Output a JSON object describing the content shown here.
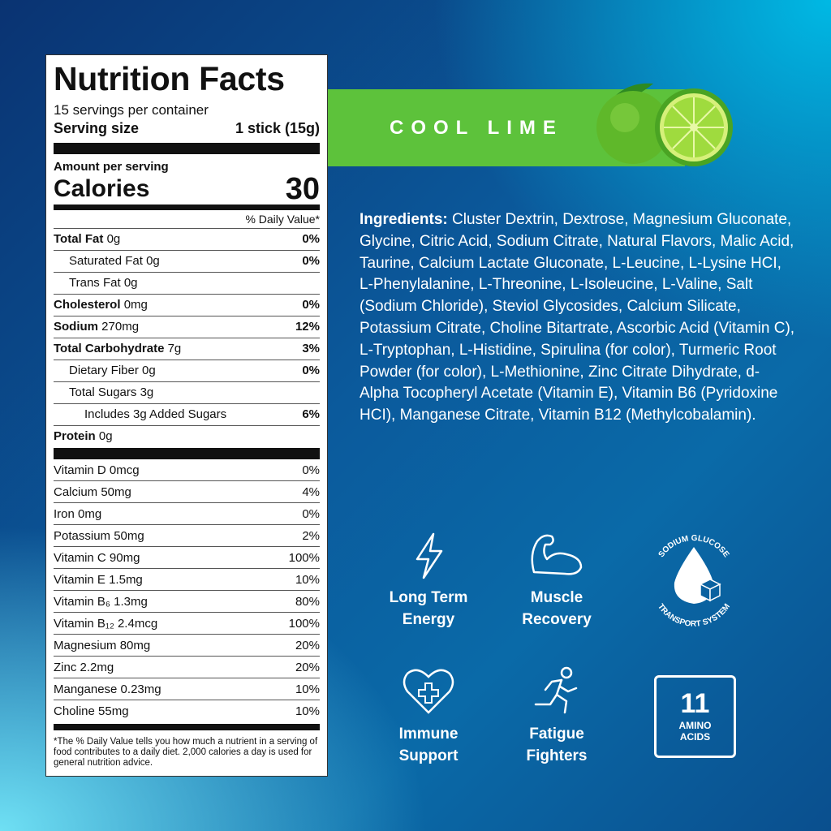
{
  "label": {
    "title": "Nutrition Facts",
    "servings": "15 servings per container",
    "serving_size_label": "Serving size",
    "serving_size_value": "1 stick (15g)",
    "amount_per_serving": "Amount per serving",
    "calories_label": "Calories",
    "calories_value": "30",
    "dv_header": "% Daily Value*",
    "nutrients": [
      {
        "name": "Total Fat",
        "amount": "0g",
        "dv": "0%"
      },
      {
        "name": "Saturated Fat",
        "amount": "0g",
        "dv": "0%"
      },
      {
        "name": "Trans Fat",
        "amount": "0g",
        "dv": ""
      },
      {
        "name": "Cholesterol",
        "amount": "0mg",
        "dv": "0%"
      },
      {
        "name": "Sodium",
        "amount": "270mg",
        "dv": "12%"
      },
      {
        "name": "Total Carbohydrate",
        "amount": "7g",
        "dv": "3%"
      },
      {
        "name": "Dietary Fiber",
        "amount": "0g",
        "dv": "0%"
      },
      {
        "name": "Total Sugars",
        "amount": "3g",
        "dv": ""
      },
      {
        "name": "Includes 3g Added Sugars",
        "amount": "",
        "dv": "6%"
      },
      {
        "name": "Protein",
        "amount": "0g",
        "dv": ""
      }
    ],
    "vitamins": [
      {
        "name": "Vitamin D 0mcg",
        "dv": "0%"
      },
      {
        "name": "Calcium 50mg",
        "dv": "4%"
      },
      {
        "name": "Iron 0mg",
        "dv": "0%"
      },
      {
        "name": "Potassium 50mg",
        "dv": "2%"
      },
      {
        "name": "Vitamin C 90mg",
        "dv": "100%"
      },
      {
        "name": "Vitamin E 1.5mg",
        "dv": "10%"
      },
      {
        "name": "Vitamin B₆ 1.3mg",
        "dv": "80%"
      },
      {
        "name": "Vitamin B₁₂ 2.4mcg",
        "dv": "100%"
      },
      {
        "name": "Magnesium 80mg",
        "dv": "20%"
      },
      {
        "name": "Zinc 2.2mg",
        "dv": "20%"
      },
      {
        "name": "Manganese 0.23mg",
        "dv": "10%"
      },
      {
        "name": "Choline 55mg",
        "dv": "10%"
      }
    ],
    "footnote": "*The % Daily Value tells you how much a nutrient in a serving of food contributes to a daily diet. 2,000 calories a day is used for general nutrition advice."
  },
  "flavor": "COOL LIME",
  "ingredients": {
    "label": "Ingredients:",
    "text": " Cluster Dextrin, Dextrose, Magnesium Gluconate, Glycine, Citric Acid, Sodium Citrate, Natural Flavors, Malic Acid, Taurine, Calcium Lactate Gluconate, L-Leucine, L-Lysine HCI, L-Phenylalanine, L-Threonine, L-Isoleucine, L-Valine, Salt (Sodium Chloride), Steviol Glycosides, Calcium Silicate, Potassium Citrate, Choline Bitartrate, Ascorbic Acid (Vitamin C), L-Tryptophan, L-Histidine, Spirulina (for color), Turmeric Root Powder (for color), L-Methionine, Zinc Citrate Dihydrate, d-Alpha Tocopheryl Acetate (Vitamin E), Vitamin B6 (Pyridoxine HCI), Manganese Citrate, Vitamin B12 (Methylcobalamin)."
  },
  "features": [
    {
      "line1": "Long Term",
      "line2": "Energy",
      "icon": "lightning-icon"
    },
    {
      "line1": "Muscle",
      "line2": "Recovery",
      "icon": "flexed-arm-icon"
    },
    {
      "top": "SODIUM GLUCOSE",
      "bottom": "TRANSPORT SYSTEM",
      "icon": "drop-cube-icon"
    },
    {
      "line1": "Immune",
      "line2": "Support",
      "icon": "heart-cross-icon"
    },
    {
      "line1": "Fatigue",
      "line2": "Fighters",
      "icon": "runner-icon"
    },
    {
      "number": "11",
      "line1": "AMINO",
      "line2": "ACIDS"
    }
  ],
  "colors": {
    "banner": "#5dc23b",
    "background_dark": "#0a3372",
    "background_light": "#00b9e4"
  }
}
